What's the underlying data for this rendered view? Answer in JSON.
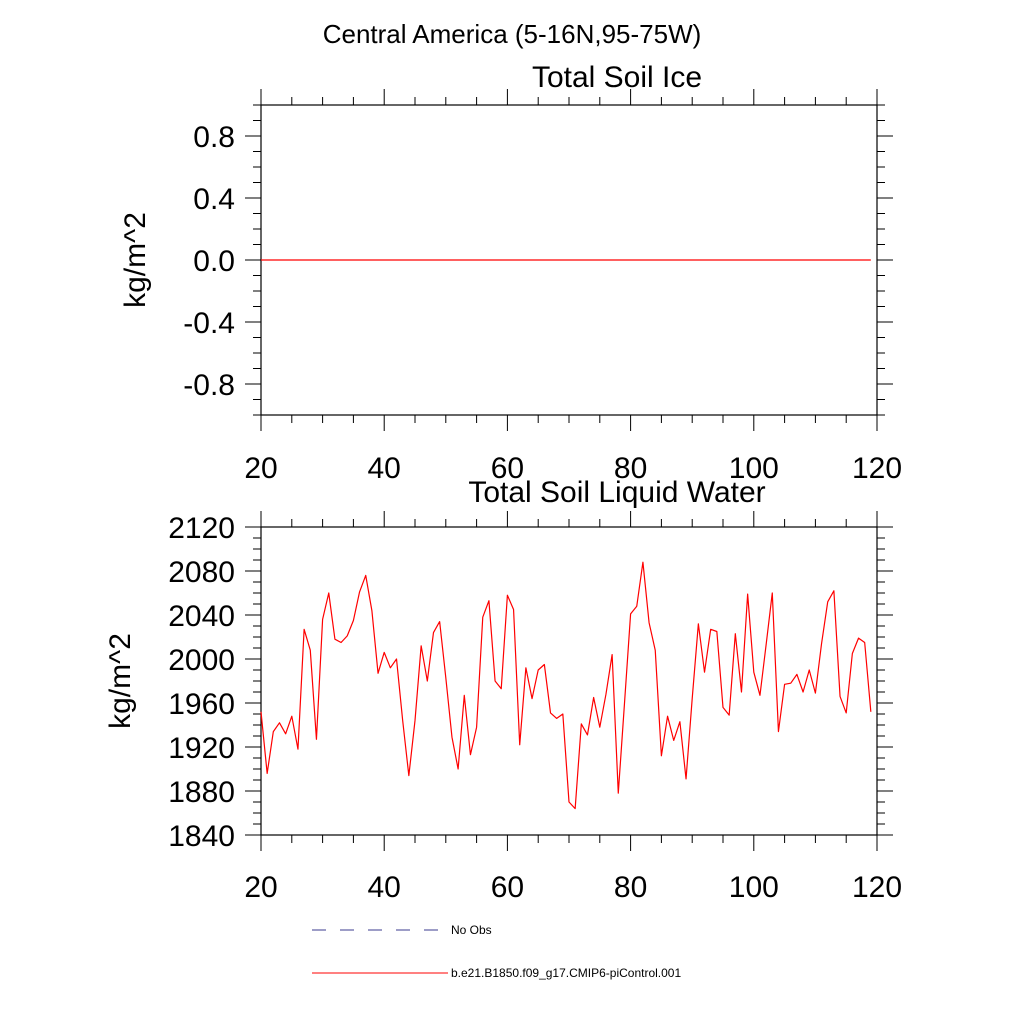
{
  "figure": {
    "region_title": "Central America (5-16N,95-75W)"
  },
  "colors": {
    "model_line": "#ff0000",
    "obs_line": "#3b3b8f",
    "axis": "#000000"
  },
  "legend": {
    "obs_label": "No Obs",
    "model_label": "b.e21.B1850.f09_g17.CMIP6-piControl.001"
  },
  "chart_data": [
    {
      "type": "line",
      "title": "Total Soil Ice",
      "ylabel": "kg/m^2",
      "xlabel": "",
      "xlim": [
        20,
        120
      ],
      "ylim": [
        -1.0,
        1.0
      ],
      "x_ticks": [
        "20",
        "40",
        "60",
        "80",
        "100",
        "120"
      ],
      "y_ticks": [
        "0.8",
        "0.4",
        "0.0",
        "-0.4",
        "-0.8"
      ],
      "grid": false,
      "series": [
        {
          "name": "b.e21.B1850.f09_g17.CMIP6-piControl.001",
          "x_start": 20,
          "x_end": 119,
          "values": [
            0,
            0,
            0,
            0,
            0,
            0,
            0,
            0,
            0,
            0,
            0,
            0,
            0,
            0,
            0,
            0,
            0,
            0,
            0,
            0,
            0,
            0,
            0,
            0,
            0,
            0,
            0,
            0,
            0,
            0,
            0,
            0,
            0,
            0,
            0,
            0,
            0,
            0,
            0,
            0,
            0,
            0,
            0,
            0,
            0,
            0,
            0,
            0,
            0,
            0,
            0,
            0,
            0,
            0,
            0,
            0,
            0,
            0,
            0,
            0,
            0,
            0,
            0,
            0,
            0,
            0,
            0,
            0,
            0,
            0,
            0,
            0,
            0,
            0,
            0,
            0,
            0,
            0,
            0,
            0,
            0,
            0,
            0,
            0,
            0,
            0,
            0,
            0,
            0,
            0,
            0,
            0,
            0,
            0,
            0,
            0,
            0,
            0,
            0,
            0
          ]
        }
      ]
    },
    {
      "type": "line",
      "title": "Total Soil Liquid Water",
      "ylabel": "kg/m^2",
      "xlabel": "",
      "xlim": [
        20,
        120
      ],
      "ylim": [
        1840,
        2120
      ],
      "x_ticks": [
        "20",
        "40",
        "60",
        "80",
        "100",
        "120"
      ],
      "y_ticks": [
        "2120",
        "2080",
        "2040",
        "2000",
        "1960",
        "1920",
        "1880",
        "1840"
      ],
      "grid": false,
      "series": [
        {
          "name": "b.e21.B1850.f09_g17.CMIP6-piControl.001",
          "x_start": 20,
          "x_end": 119,
          "values": [
            1952,
            1896,
            1934,
            1942,
            1932,
            1948,
            1918,
            2027,
            2008,
            1927,
            2036,
            2060,
            2018,
            2015,
            2021,
            2035,
            2061,
            2076,
            2044,
            1987,
            2006,
            1992,
            2000,
            1944,
            1894,
            1944,
            2012,
            1980,
            2024,
            2034,
            1983,
            1929,
            1900,
            1967,
            1913,
            1938,
            2038,
            2053,
            1980,
            1973,
            2058,
            2045,
            1922,
            1992,
            1964,
            1990,
            1995,
            1951,
            1946,
            1950,
            1870,
            1864,
            1941,
            1931,
            1965,
            1938,
            1968,
            2004,
            1878,
            1959,
            2041,
            2048,
            2088,
            2033,
            2008,
            1912,
            1948,
            1926,
            1943,
            1891,
            1964,
            2032,
            1988,
            2027,
            2025,
            1956,
            1949,
            2023,
            1970,
            2059,
            1988,
            1967,
            2013,
            2060,
            1934,
            1977,
            1978,
            1986,
            1970,
            1990,
            1969,
            2014,
            2052,
            2062,
            1966,
            1951,
            2005,
            2019,
            2015,
            1952
          ]
        }
      ]
    }
  ]
}
